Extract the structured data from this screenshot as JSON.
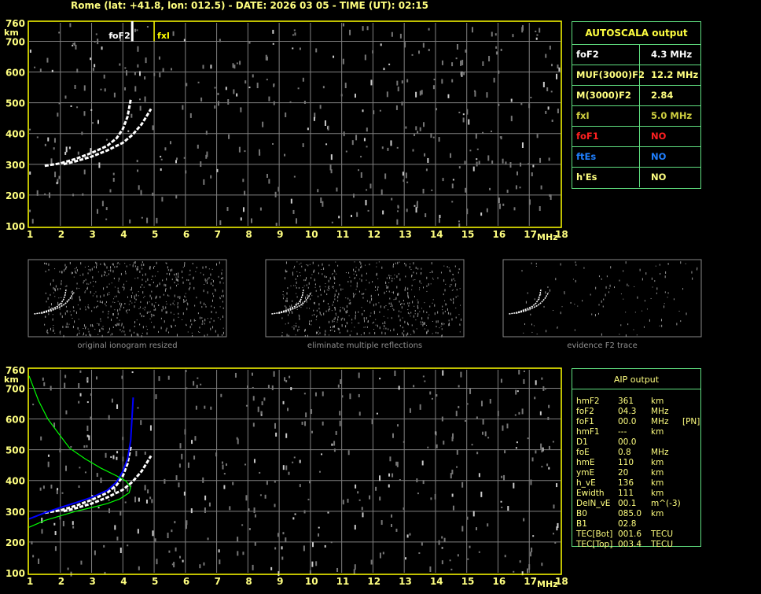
{
  "header": {
    "title": "Rome (lat: +41.8, lon: 012.5) - DATE: 2026 03 05 - TIME (UT): 02:15"
  },
  "colors": {
    "axis_frame": "#ffff00",
    "grid": "#808080",
    "trace": "#ffffff",
    "profile_fit": "#0000ff",
    "profile_model": "#00ff00",
    "table_border": "#60e080",
    "text": "#ffff80"
  },
  "chart_data": [
    {
      "type": "scatter",
      "title": "",
      "xlabel": "MHz",
      "ylabel": "km",
      "xlim": [
        1,
        18
      ],
      "ylim": [
        100,
        760
      ],
      "xticks": [
        "1",
        "2",
        "3",
        "4",
        "5",
        "6",
        "7",
        "8",
        "9",
        "10",
        "11",
        "12",
        "13",
        "14",
        "15",
        "16",
        "17",
        "18"
      ],
      "yticks": [
        "100",
        "200",
        "300",
        "400",
        "500",
        "600",
        "700",
        "760"
      ],
      "grid": true,
      "markers": [
        {
          "label": "foF2",
          "x": 4.3,
          "color": "#ffffff"
        },
        {
          "label": "fxI",
          "x": 5.0,
          "color": "#ffff00"
        }
      ],
      "series": [
        {
          "trace": "o",
          "points": [
            [
              1.5,
              295
            ],
            [
              2,
              303
            ],
            [
              2.5,
              318
            ],
            [
              3,
              337
            ],
            [
              3.5,
              360
            ],
            [
              3.8,
              385
            ],
            [
              4.0,
              415
            ],
            [
              4.15,
              455
            ],
            [
              4.25,
              510
            ]
          ]
        },
        {
          "trace": "x",
          "points": [
            [
              2.1,
              300
            ],
            [
              2.5,
              310
            ],
            [
              3,
              325
            ],
            [
              3.5,
              345
            ],
            [
              4,
              370
            ],
            [
              4.3,
              395
            ],
            [
              4.6,
              430
            ],
            [
              4.9,
              480
            ]
          ]
        }
      ]
    },
    {
      "type": "line",
      "title": "",
      "xlabel": "MHz",
      "ylabel": "km",
      "xlim": [
        1,
        18
      ],
      "ylim": [
        100,
        760
      ],
      "xticks": [
        "1",
        "2",
        "3",
        "4",
        "5",
        "6",
        "7",
        "8",
        "9",
        "10",
        "11",
        "12",
        "13",
        "14",
        "15",
        "16",
        "17",
        "18"
      ],
      "yticks": [
        "100",
        "200",
        "300",
        "400",
        "500",
        "600",
        "700",
        "760"
      ],
      "grid": true,
      "series": [
        {
          "trace": "o",
          "points": [
            [
              1.5,
              295
            ],
            [
              2,
              303
            ],
            [
              2.5,
              318
            ],
            [
              3,
              337
            ],
            [
              3.5,
              360
            ],
            [
              3.8,
              385
            ],
            [
              4.0,
              415
            ],
            [
              4.15,
              455
            ],
            [
              4.25,
              510
            ]
          ]
        },
        {
          "trace": "x",
          "points": [
            [
              2.1,
              300
            ],
            [
              2.5,
              310
            ],
            [
              3,
              325
            ],
            [
              3.5,
              345
            ],
            [
              4,
              370
            ],
            [
              4.3,
              395
            ],
            [
              4.6,
              430
            ],
            [
              4.9,
              480
            ]
          ]
        },
        {
          "profile": "fit",
          "color": "#0000ff",
          "points": [
            [
              1,
              275
            ],
            [
              1.5,
              295
            ],
            [
              2,
              312
            ],
            [
              2.5,
              328
            ],
            [
              3,
              345
            ],
            [
              3.5,
              368
            ],
            [
              3.8,
              395
            ],
            [
              4.0,
              430
            ],
            [
              4.15,
              470
            ],
            [
              4.25,
              530
            ],
            [
              4.33,
              670
            ]
          ]
        },
        {
          "profile": "model",
          "color": "#00ff00",
          "points": [
            [
              1,
              248
            ],
            [
              1.5,
              270
            ],
            [
              2,
              285
            ],
            [
              2.5,
              300
            ],
            [
              3,
              312
            ],
            [
              3.5,
              325
            ],
            [
              3.9,
              340
            ],
            [
              4.2,
              360
            ],
            [
              4.25,
              378
            ],
            [
              4.1,
              398
            ],
            [
              3.8,
              415
            ],
            [
              3.3,
              440
            ],
            [
              2.8,
              470
            ],
            [
              2.3,
              505
            ],
            [
              2,
              545
            ],
            [
              1.6,
              600
            ],
            [
              1.3,
              660
            ],
            [
              1,
              740
            ]
          ]
        }
      ]
    }
  ],
  "thumbnails": [
    {
      "caption": "original ionogram resized"
    },
    {
      "caption": "eliminate multiple reflections"
    },
    {
      "caption": "evidence F2 trace"
    }
  ],
  "autoscala": {
    "title": "AUTOSCALA output",
    "rows": [
      {
        "key": "foF2",
        "value": "4.3 MHz",
        "color": "#ffffff"
      },
      {
        "key": "MUF(3000)F2",
        "value": "12.2 MHz",
        "color": "#ffff80"
      },
      {
        "key": "M(3000)F2",
        "value": "2.84",
        "color": "#ffff80"
      },
      {
        "key": "fxI",
        "value": "5.0 MHz",
        "color": "#d0d040"
      },
      {
        "key": "foF1",
        "value": "NO",
        "color": "#ff2020"
      },
      {
        "key": "ftEs",
        "value": "NO",
        "color": "#2080ff"
      },
      {
        "key": "h'Es",
        "value": "NO",
        "color": "#ffff80"
      }
    ]
  },
  "aip": {
    "title": "AIP output",
    "rows": [
      [
        "hmF2",
        "361",
        "km",
        ""
      ],
      [
        "foF2",
        "04.3",
        "MHz",
        ""
      ],
      [
        "foF1",
        "00.0",
        "MHz",
        "[PN]"
      ],
      [
        "hmF1",
        "---",
        "km",
        ""
      ],
      [
        "D1",
        "00.0",
        "",
        ""
      ],
      [
        "foE",
        "0.8",
        "MHz",
        ""
      ],
      [
        "hmE",
        "110",
        "km",
        ""
      ],
      [
        "ymE",
        "20",
        "km",
        ""
      ],
      [
        "h_vE",
        "136",
        "km",
        ""
      ],
      [
        "Ewidth",
        "111",
        "km",
        ""
      ],
      [
        "DelN_vE",
        "00.1",
        "m^(-3)",
        ""
      ],
      [
        "B0",
        "085.0",
        "km",
        ""
      ],
      [
        "B1",
        "02.8",
        "",
        ""
      ],
      [
        "TEC[Bot]",
        "001.6",
        "TECU",
        ""
      ],
      [
        "TEC[Top]",
        "003.4",
        "TECU",
        ""
      ]
    ]
  }
}
